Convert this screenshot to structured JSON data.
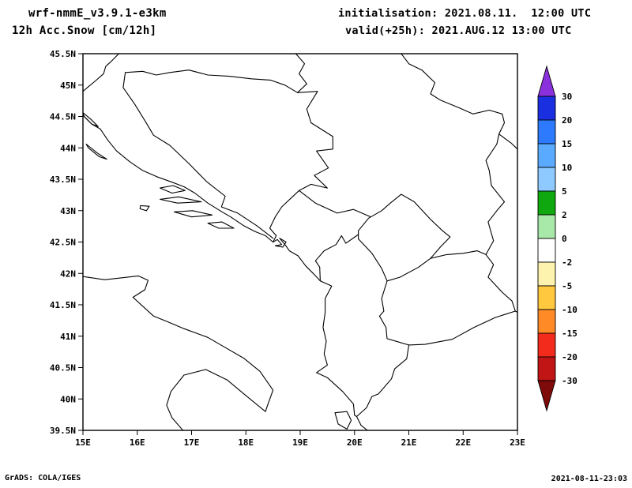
{
  "header": {
    "model": "wrf-nmmE_v3.9.1-e3km",
    "product": "12h Acc.Snow [cm/12h]",
    "init": "initialisation: 2021.08.11.  12:00 UTC",
    "valid": "valid(+25h): 2021.AUG.12 13:00 UTC"
  },
  "axes": {
    "y_ticks": [
      "45.5N",
      "45N",
      "44.5N",
      "44N",
      "43.5N",
      "43N",
      "42.5N",
      "42N",
      "41.5N",
      "41N",
      "40.5N",
      "40N",
      "39.5N"
    ],
    "x_ticks": [
      "15E",
      "16E",
      "17E",
      "18E",
      "19E",
      "20E",
      "21E",
      "22E",
      "23E"
    ]
  },
  "colorbar": {
    "labels": [
      "30",
      "20",
      "15",
      "10",
      "5",
      "2",
      "0",
      "-2",
      "-5",
      "-10",
      "-15",
      "-20",
      "-30"
    ],
    "colors": [
      "#8b30dd",
      "#1a2fe0",
      "#2e7aff",
      "#5aabff",
      "#8ec9ff",
      "#0fa80f",
      "#a8e8a8",
      "#ffffff",
      "#fdf2ae",
      "#ffc83e",
      "#ff8a26",
      "#f22b1d",
      "#c11414",
      "#7e0a0a"
    ]
  },
  "map": {
    "lon_range": [
      15,
      23
    ],
    "lat_range": [
      39.5,
      45.5
    ],
    "line_color": "#000000",
    "features": [
      {
        "name": "border-nw-croatia-slovenia",
        "closed": false,
        "points": [
          [
            15.66,
            45.5
          ],
          [
            15.5,
            45.36
          ],
          [
            15.42,
            45.3
          ],
          [
            15.38,
            45.18
          ],
          [
            15.22,
            45.06
          ],
          [
            15.08,
            44.96
          ],
          [
            15.0,
            44.9
          ]
        ]
      },
      {
        "name": "border-croatia-bosnia-sava",
        "closed": false,
        "points": [
          [
            15.78,
            45.2
          ],
          [
            16.1,
            45.22
          ],
          [
            16.35,
            45.16
          ],
          [
            16.6,
            45.2
          ],
          [
            16.95,
            45.24
          ],
          [
            17.3,
            45.16
          ],
          [
            17.7,
            45.14
          ],
          [
            18.1,
            45.1
          ],
          [
            18.45,
            45.08
          ],
          [
            18.72,
            45.0
          ],
          [
            18.95,
            44.88
          ]
        ]
      },
      {
        "name": "border-croatia-bosnia-south",
        "closed": false,
        "points": [
          [
            15.78,
            45.2
          ],
          [
            15.74,
            44.96
          ],
          [
            15.95,
            44.7
          ],
          [
            16.15,
            44.42
          ],
          [
            16.3,
            44.2
          ],
          [
            16.6,
            44.04
          ],
          [
            16.95,
            43.75
          ],
          [
            17.28,
            43.46
          ],
          [
            17.62,
            43.23
          ],
          [
            17.55,
            43.06
          ],
          [
            17.85,
            42.96
          ],
          [
            18.2,
            42.76
          ],
          [
            18.5,
            42.56
          ]
        ]
      },
      {
        "name": "border-croatia-serbia",
        "closed": false,
        "points": [
          [
            18.92,
            45.5
          ],
          [
            19.08,
            45.34
          ],
          [
            18.98,
            45.18
          ],
          [
            19.12,
            45.02
          ],
          [
            18.95,
            44.88
          ]
        ]
      },
      {
        "name": "border-bosnia-serbia-drina",
        "closed": false,
        "points": [
          [
            18.95,
            44.88
          ],
          [
            19.32,
            44.9
          ],
          [
            19.12,
            44.62
          ],
          [
            19.2,
            44.4
          ],
          [
            19.6,
            44.18
          ],
          [
            19.6,
            43.98
          ],
          [
            19.3,
            43.95
          ],
          [
            19.52,
            43.68
          ],
          [
            19.26,
            43.56
          ],
          [
            19.5,
            43.36
          ],
          [
            19.2,
            43.42
          ],
          [
            18.98,
            43.32
          ]
        ]
      },
      {
        "name": "border-bosnia-montenegro",
        "closed": false,
        "points": [
          [
            18.98,
            43.32
          ],
          [
            18.66,
            43.06
          ],
          [
            18.54,
            42.9
          ],
          [
            18.44,
            42.72
          ],
          [
            18.56,
            42.6
          ],
          [
            18.5,
            42.5
          ]
        ]
      },
      {
        "name": "border-montenegro-serbia",
        "closed": false,
        "points": [
          [
            18.98,
            43.32
          ],
          [
            19.28,
            43.12
          ],
          [
            19.68,
            42.96
          ],
          [
            19.98,
            43.02
          ],
          [
            20.3,
            42.9
          ]
        ]
      },
      {
        "name": "border-kosovo",
        "closed": true,
        "points": [
          [
            20.07,
            42.68
          ],
          [
            20.26,
            42.88
          ],
          [
            20.5,
            43.0
          ],
          [
            20.66,
            43.12
          ],
          [
            20.86,
            43.26
          ],
          [
            21.1,
            43.14
          ],
          [
            21.4,
            42.86
          ],
          [
            21.62,
            42.68
          ],
          [
            21.76,
            42.58
          ],
          [
            21.58,
            42.42
          ],
          [
            21.4,
            42.24
          ],
          [
            21.18,
            42.1
          ],
          [
            20.84,
            41.94
          ],
          [
            20.6,
            41.88
          ],
          [
            20.5,
            42.08
          ],
          [
            20.32,
            42.32
          ],
          [
            20.07,
            42.55
          ]
        ]
      },
      {
        "name": "border-montenegro-albania",
        "closed": false,
        "points": [
          [
            19.37,
            41.88
          ],
          [
            19.36,
            42.1
          ],
          [
            19.28,
            42.2
          ],
          [
            19.44,
            42.36
          ],
          [
            19.66,
            42.46
          ],
          [
            19.76,
            42.6
          ],
          [
            19.84,
            42.48
          ],
          [
            20.07,
            42.62
          ]
        ]
      },
      {
        "name": "border-albania-macedonia",
        "closed": false,
        "points": [
          [
            20.6,
            41.88
          ],
          [
            20.5,
            41.6
          ],
          [
            20.54,
            41.4
          ],
          [
            20.46,
            41.32
          ],
          [
            20.58,
            41.14
          ],
          [
            20.6,
            40.96
          ],
          [
            20.84,
            40.9
          ],
          [
            21.0,
            40.86
          ]
        ]
      },
      {
        "name": "border-serbia-macedonia",
        "closed": false,
        "points": [
          [
            21.4,
            42.24
          ],
          [
            21.7,
            42.3
          ],
          [
            22.0,
            42.32
          ],
          [
            22.26,
            42.36
          ],
          [
            22.42,
            42.3
          ]
        ]
      },
      {
        "name": "border-macedonia-bulgaria",
        "closed": false,
        "points": [
          [
            22.42,
            42.3
          ],
          [
            22.56,
            42.14
          ],
          [
            22.46,
            41.94
          ],
          [
            22.72,
            41.7
          ],
          [
            22.9,
            41.56
          ],
          [
            22.96,
            41.4
          ]
        ]
      },
      {
        "name": "border-macedonia-greece",
        "closed": false,
        "points": [
          [
            21.0,
            40.86
          ],
          [
            21.3,
            40.87
          ],
          [
            21.8,
            40.95
          ],
          [
            22.2,
            41.14
          ],
          [
            22.6,
            41.3
          ],
          [
            22.96,
            41.4
          ],
          [
            23.0,
            41.38
          ]
        ]
      },
      {
        "name": "border-albania-greece",
        "closed": false,
        "points": [
          [
            20.04,
            39.72
          ],
          [
            20.22,
            39.86
          ],
          [
            20.32,
            40.04
          ],
          [
            20.44,
            40.08
          ],
          [
            20.68,
            40.32
          ],
          [
            20.74,
            40.48
          ],
          [
            20.96,
            40.64
          ],
          [
            21.0,
            40.86
          ]
        ]
      },
      {
        "name": "border-serbia-bulgaria",
        "closed": false,
        "points": [
          [
            22.42,
            42.3
          ],
          [
            22.56,
            42.52
          ],
          [
            22.46,
            42.82
          ],
          [
            22.62,
            43.0
          ],
          [
            22.76,
            43.14
          ],
          [
            22.52,
            43.4
          ],
          [
            22.48,
            43.64
          ],
          [
            22.42,
            43.8
          ],
          [
            22.62,
            44.06
          ],
          [
            22.66,
            44.22
          ]
        ]
      },
      {
        "name": "border-serbia-romania",
        "closed": false,
        "points": [
          [
            20.86,
            45.5
          ],
          [
            21.0,
            45.34
          ],
          [
            21.24,
            45.24
          ],
          [
            21.48,
            45.04
          ],
          [
            21.4,
            44.86
          ],
          [
            21.58,
            44.76
          ],
          [
            21.92,
            44.64
          ],
          [
            22.18,
            44.54
          ],
          [
            22.48,
            44.6
          ],
          [
            22.72,
            44.54
          ],
          [
            22.76,
            44.4
          ],
          [
            22.66,
            44.22
          ],
          [
            22.88,
            44.08
          ],
          [
            23.0,
            43.98
          ]
        ]
      },
      {
        "name": "coast-croatia",
        "closed": false,
        "points": [
          [
            15.0,
            44.52
          ],
          [
            15.16,
            44.38
          ],
          [
            15.32,
            44.3
          ],
          [
            15.46,
            44.12
          ],
          [
            15.62,
            43.95
          ],
          [
            15.86,
            43.78
          ],
          [
            16.1,
            43.64
          ],
          [
            16.36,
            43.54
          ],
          [
            16.62,
            43.46
          ],
          [
            16.86,
            43.38
          ],
          [
            17.06,
            43.28
          ],
          [
            17.3,
            43.12
          ],
          [
            17.56,
            42.98
          ],
          [
            17.72,
            42.9
          ],
          [
            17.96,
            42.76
          ],
          [
            18.16,
            42.67
          ],
          [
            18.36,
            42.6
          ],
          [
            18.5,
            42.5
          ]
        ]
      },
      {
        "name": "coast-kotor-bay",
        "closed": false,
        "points": [
          [
            18.5,
            42.5
          ],
          [
            18.58,
            42.54
          ],
          [
            18.66,
            42.46
          ],
          [
            18.54,
            42.44
          ],
          [
            18.68,
            42.42
          ],
          [
            18.74,
            42.5
          ],
          [
            18.62,
            42.56
          ],
          [
            18.72,
            42.46
          ]
        ]
      },
      {
        "name": "coast-montenegro",
        "closed": false,
        "points": [
          [
            18.72,
            42.46
          ],
          [
            18.8,
            42.36
          ],
          [
            18.96,
            42.28
          ],
          [
            19.1,
            42.12
          ],
          [
            19.24,
            42.0
          ],
          [
            19.37,
            41.88
          ]
        ]
      },
      {
        "name": "coast-albania-greece",
        "closed": false,
        "points": [
          [
            19.37,
            41.88
          ],
          [
            19.58,
            41.8
          ],
          [
            19.46,
            41.6
          ],
          [
            19.46,
            41.38
          ],
          [
            19.42,
            41.14
          ],
          [
            19.48,
            40.92
          ],
          [
            19.44,
            40.72
          ],
          [
            19.5,
            40.54
          ],
          [
            19.3,
            40.42
          ],
          [
            19.5,
            40.34
          ],
          [
            19.78,
            40.12
          ],
          [
            19.98,
            39.92
          ],
          [
            20.0,
            39.74
          ],
          [
            20.04,
            39.72
          ],
          [
            20.12,
            39.58
          ],
          [
            20.24,
            39.5
          ]
        ]
      },
      {
        "name": "coast-italy",
        "closed": false,
        "points": [
          [
            15.0,
            41.95
          ],
          [
            15.4,
            41.9
          ],
          [
            15.62,
            41.92
          ],
          [
            16.02,
            41.96
          ],
          [
            16.2,
            41.89
          ],
          [
            16.14,
            41.74
          ],
          [
            15.92,
            41.62
          ],
          [
            16.3,
            41.32
          ],
          [
            16.56,
            41.23
          ],
          [
            16.86,
            41.12
          ],
          [
            17.3,
            40.98
          ],
          [
            17.66,
            40.8
          ],
          [
            17.96,
            40.65
          ],
          [
            18.26,
            40.44
          ],
          [
            18.5,
            40.14
          ],
          [
            18.4,
            39.9
          ],
          [
            18.36,
            39.8
          ],
          [
            18.02,
            40.04
          ],
          [
            17.66,
            40.3
          ],
          [
            17.26,
            40.47
          ],
          [
            16.86,
            40.38
          ],
          [
            16.62,
            40.12
          ],
          [
            16.54,
            39.9
          ],
          [
            16.64,
            39.7
          ],
          [
            16.8,
            39.54
          ],
          [
            16.84,
            39.5
          ]
        ]
      },
      {
        "name": "island-pag",
        "closed": true,
        "points": [
          [
            15.0,
            44.56
          ],
          [
            15.14,
            44.46
          ],
          [
            15.28,
            44.34
          ],
          [
            15.16,
            44.38
          ],
          [
            15.02,
            44.5
          ]
        ]
      },
      {
        "name": "island-dugi-otok",
        "closed": true,
        "points": [
          [
            15.06,
            44.06
          ],
          [
            15.26,
            43.92
          ],
          [
            15.44,
            43.82
          ],
          [
            15.3,
            43.86
          ],
          [
            15.1,
            44.0
          ]
        ]
      },
      {
        "name": "island-brac",
        "closed": true,
        "points": [
          [
            16.42,
            43.36
          ],
          [
            16.66,
            43.4
          ],
          [
            16.88,
            43.32
          ],
          [
            16.64,
            43.28
          ]
        ]
      },
      {
        "name": "island-hvar",
        "closed": true,
        "points": [
          [
            16.42,
            43.18
          ],
          [
            16.76,
            43.22
          ],
          [
            17.18,
            43.14
          ],
          [
            16.74,
            43.12
          ]
        ]
      },
      {
        "name": "island-vis",
        "closed": true,
        "points": [
          [
            16.06,
            43.08
          ],
          [
            16.22,
            43.07
          ],
          [
            16.17,
            43.0
          ],
          [
            16.05,
            43.03
          ]
        ]
      },
      {
        "name": "island-korcula",
        "closed": true,
        "points": [
          [
            16.68,
            42.98
          ],
          [
            17.02,
            43.0
          ],
          [
            17.38,
            42.93
          ],
          [
            17.0,
            42.9
          ]
        ]
      },
      {
        "name": "island-mljet",
        "closed": true,
        "points": [
          [
            17.3,
            42.8
          ],
          [
            17.56,
            42.82
          ],
          [
            17.78,
            42.72
          ],
          [
            17.5,
            42.72
          ]
        ]
      },
      {
        "name": "island-corfu",
        "closed": true,
        "points": [
          [
            19.64,
            39.78
          ],
          [
            19.86,
            39.8
          ],
          [
            19.94,
            39.66
          ],
          [
            19.86,
            39.52
          ],
          [
            19.7,
            39.6
          ]
        ]
      }
    ]
  },
  "footer": {
    "credit": "GrADS: COLA/IGES",
    "timestamp": "2021-08-11-23:03"
  }
}
